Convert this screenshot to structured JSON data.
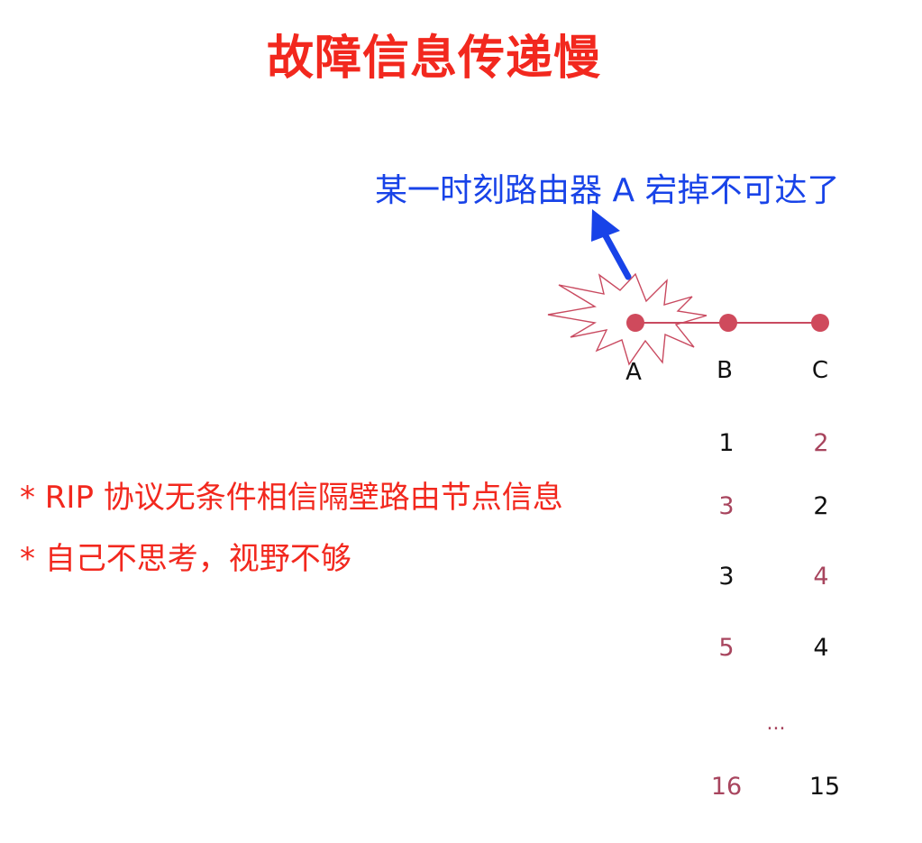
{
  "title": "故障信息传递慢",
  "annotation": "某一时刻路由器 A 宕掉不可达了",
  "nodes": [
    "A",
    "B",
    "C"
  ],
  "bullets": [
    "* RIP 协议无条件相信隔壁路由节点信息",
    "* 自己不思考，视野不够"
  ],
  "table": {
    "rows": [
      [
        "1",
        "2"
      ],
      [
        "3",
        "2"
      ],
      [
        "3",
        "4"
      ],
      [
        "5",
        "4"
      ],
      [
        "16",
        "15"
      ]
    ],
    "ellipsis": "..."
  },
  "colors": {
    "title": "#f2281e",
    "annotation": "#1843e8",
    "node": "#cf4a5c",
    "accent": "#a8455e",
    "text": "#111111"
  }
}
